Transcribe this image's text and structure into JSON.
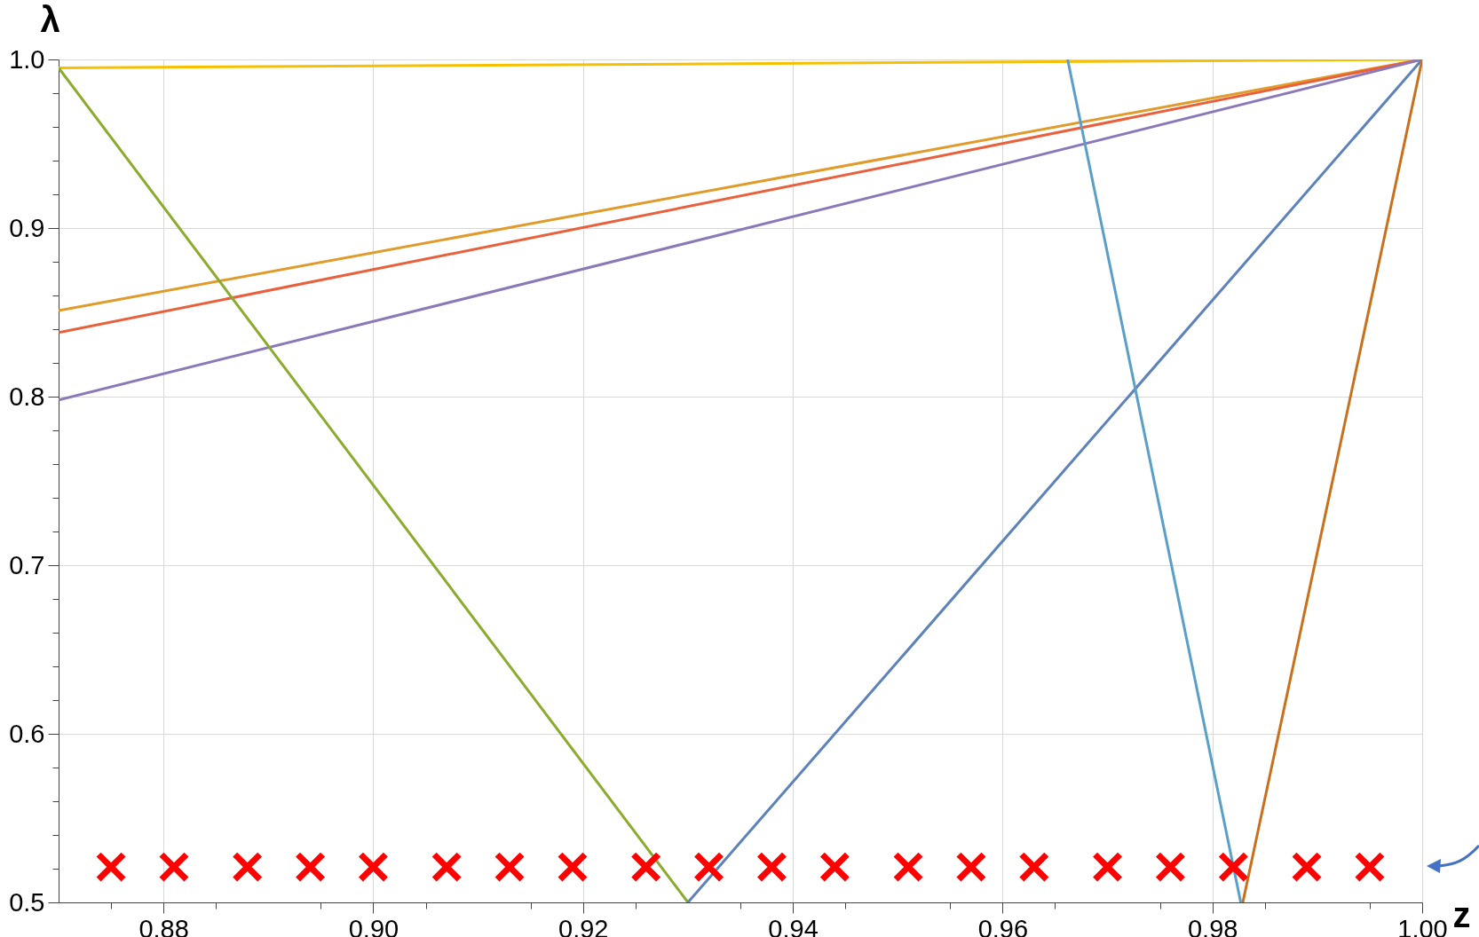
{
  "chart_data": {
    "type": "line",
    "xlabel": "z",
    "ylabel": "λ",
    "xlim": [
      0.87,
      1.0
    ],
    "ylim": [
      0.5,
      1.0
    ],
    "xticks": [
      0.88,
      {
        "value": 0.9,
        "label": "0.90"
      },
      0.92,
      0.94,
      0.96,
      0.98,
      {
        "value": 1.0,
        "label": "1.00"
      },
      {
        "value": 0.875,
        "label": null
      },
      {
        "value": 0.885,
        "label": null
      },
      {
        "value": 0.895,
        "label": null
      },
      {
        "value": 0.905,
        "label": null
      },
      {
        "value": 0.915,
        "label": null
      },
      {
        "value": 0.925,
        "label": null
      },
      {
        "value": 0.935,
        "label": null
      },
      {
        "value": 0.945,
        "label": null
      },
      {
        "value": 0.955,
        "label": null
      },
      {
        "value": 0.965,
        "label": null
      },
      {
        "value": 0.975,
        "label": null
      },
      {
        "value": 0.985,
        "label": null
      },
      {
        "value": 0.995,
        "label": null
      }
    ],
    "yticks": [
      0.5,
      0.6,
      0.7,
      0.8,
      0.9,
      {
        "value": 1.0,
        "label": "1.0"
      },
      {
        "value": 0.52,
        "label": null
      },
      {
        "value": 0.54,
        "label": null
      },
      {
        "value": 0.56,
        "label": null
      },
      {
        "value": 0.58,
        "label": null
      },
      {
        "value": 0.62,
        "label": null
      },
      {
        "value": 0.64,
        "label": null
      },
      {
        "value": 0.66,
        "label": null
      },
      {
        "value": 0.68,
        "label": null
      },
      {
        "value": 0.72,
        "label": null
      },
      {
        "value": 0.74,
        "label": null
      },
      {
        "value": 0.76,
        "label": null
      },
      {
        "value": 0.78,
        "label": null
      },
      {
        "value": 0.82,
        "label": null
      },
      {
        "value": 0.84,
        "label": null
      },
      {
        "value": 0.86,
        "label": null
      },
      {
        "value": 0.88,
        "label": null
      },
      {
        "value": 0.92,
        "label": null
      },
      {
        "value": 0.94,
        "label": null
      },
      {
        "value": 0.96,
        "label": null
      },
      {
        "value": 0.98,
        "label": null
      }
    ],
    "grid": true,
    "series": [
      {
        "type": "line",
        "color": "#f5c000",
        "x": [
          0.87,
          1.0
        ],
        "values": [
          0.995,
          1.0
        ]
      },
      {
        "type": "line",
        "color": "#e09b2a",
        "x": [
          0.87,
          1.0
        ],
        "values": [
          0.851,
          1.0
        ]
      },
      {
        "type": "line",
        "color": "#e8603c",
        "x": [
          0.87,
          1.0
        ],
        "values": [
          0.838,
          1.0
        ]
      },
      {
        "type": "line",
        "color": "#8c78b8",
        "x": [
          0.87,
          1.0
        ],
        "values": [
          0.798,
          1.0
        ]
      },
      {
        "type": "line",
        "color": "#8aab2e",
        "x": [
          0.87,
          0.93
        ],
        "values": [
          0.995,
          0.5
        ]
      },
      {
        "type": "line",
        "color": "#5d82bb",
        "x": [
          0.93,
          1.0
        ],
        "values": [
          0.5,
          1.0
        ]
      },
      {
        "type": "line",
        "color": "#5a9fc8",
        "x": [
          0.9662,
          0.9827
        ],
        "values": [
          1.0,
          0.5
        ]
      },
      {
        "type": "line",
        "color": "#c8711c",
        "x": [
          0.9829,
          1.0
        ],
        "values": [
          0.5,
          1.0
        ]
      },
      {
        "type": "scatter",
        "marker": "cross",
        "color": "#ff0000",
        "x": [
          0.875,
          0.881,
          0.888,
          0.894,
          0.9,
          0.907,
          0.913,
          0.919,
          0.926,
          0.932,
          0.938,
          0.944,
          0.951,
          0.957,
          0.963,
          0.97,
          0.976,
          0.982,
          0.989,
          0.995
        ],
        "values": [
          0.521,
          0.521,
          0.521,
          0.521,
          0.521,
          0.521,
          0.521,
          0.521,
          0.521,
          0.521,
          0.521,
          0.521,
          0.521,
          0.521,
          0.521,
          0.521,
          0.521,
          0.521,
          0.521,
          0.521
        ]
      }
    ]
  }
}
